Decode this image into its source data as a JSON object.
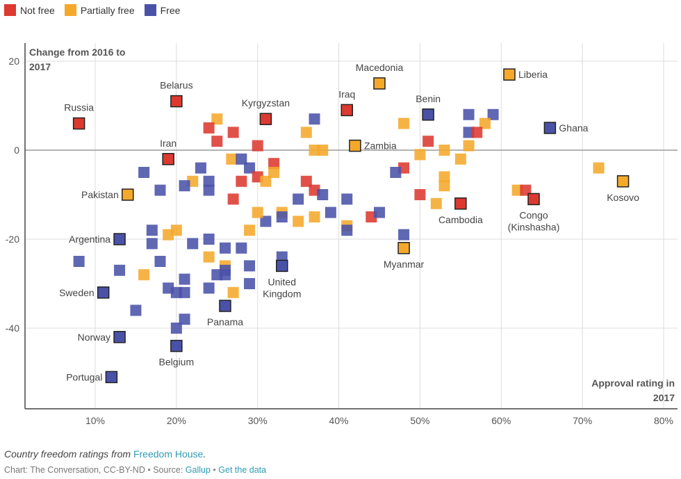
{
  "legend": [
    {
      "label": "Not free",
      "color": "#dc3a30"
    },
    {
      "label": "Partially free",
      "color": "#f5a92b"
    },
    {
      "label": "Free",
      "color": "#4a52a8"
    }
  ],
  "footer": {
    "note_prefix": "Country freedom ratings from",
    "note_link": "Freedom House",
    "note_suffix": ".",
    "credit": "Chart: The Conversation, CC-BY-ND",
    "separator": "•",
    "source_prefix": "Source:",
    "source_link": "Gallup",
    "data_link": "Get the data"
  },
  "chart_data": {
    "type": "scatter",
    "title": "",
    "ylabel": "Change from 2016 to 2017",
    "xlabel": "Approval rating in 2017",
    "xlim": [
      2,
      82
    ],
    "ylim": [
      -57.5,
      23
    ],
    "x_ticks": [
      10,
      20,
      30,
      40,
      50,
      60,
      70,
      80
    ],
    "x_tick_labels": [
      "10%",
      "20%",
      "30%",
      "40%",
      "50%",
      "60%",
      "70%",
      "80%"
    ],
    "y_ticks": [
      20,
      0,
      -20,
      -40
    ],
    "y_tick_labels": [
      "20",
      "0",
      "-20",
      "-40"
    ],
    "grid": true,
    "legend_position": "top-left",
    "categories": {
      "not_free": {
        "label": "Not free",
        "color": "#dc3a30"
      },
      "partially_free": {
        "label": "Partially free",
        "color": "#f5a92b"
      },
      "free": {
        "label": "Free",
        "color": "#4a52a8"
      }
    },
    "points": [
      {
        "x": 25,
        "y": 7,
        "cat": "partially_free"
      },
      {
        "x": 24,
        "y": 5,
        "cat": "not_free"
      },
      {
        "x": 27,
        "y": 4,
        "cat": "not_free"
      },
      {
        "x": 25,
        "y": 2,
        "cat": "not_free"
      },
      {
        "x": 30,
        "y": 1,
        "cat": "not_free"
      },
      {
        "x": 26.8,
        "y": -2,
        "cat": "partially_free"
      },
      {
        "x": 28,
        "y": -2,
        "cat": "free"
      },
      {
        "x": 29,
        "y": -4,
        "cat": "free"
      },
      {
        "x": 32,
        "y": -3,
        "cat": "not_free"
      },
      {
        "x": 32,
        "y": -5,
        "cat": "partially_free"
      },
      {
        "x": 30,
        "y": -6,
        "cat": "not_free"
      },
      {
        "x": 31,
        "y": -7,
        "cat": "partially_free"
      },
      {
        "x": 28,
        "y": -7,
        "cat": "not_free"
      },
      {
        "x": 27,
        "y": -11,
        "cat": "not_free"
      },
      {
        "x": 16,
        "y": -5,
        "cat": "free"
      },
      {
        "x": 23,
        "y": -4,
        "cat": "free"
      },
      {
        "x": 22,
        "y": -7,
        "cat": "partially_free"
      },
      {
        "x": 24,
        "y": -7,
        "cat": "free"
      },
      {
        "x": 21,
        "y": -8,
        "cat": "free"
      },
      {
        "x": 24,
        "y": -9,
        "cat": "free"
      },
      {
        "x": 18,
        "y": -9,
        "cat": "free"
      },
      {
        "x": 37,
        "y": 7,
        "cat": "free"
      },
      {
        "x": 36,
        "y": 4,
        "cat": "partially_free"
      },
      {
        "x": 48,
        "y": 6,
        "cat": "partially_free"
      },
      {
        "x": 37,
        "y": 0,
        "cat": "partially_free"
      },
      {
        "x": 38,
        "y": 0,
        "cat": "partially_free"
      },
      {
        "x": 51,
        "y": 2,
        "cat": "not_free"
      },
      {
        "x": 50,
        "y": -1,
        "cat": "partially_free"
      },
      {
        "x": 48,
        "y": -4,
        "cat": "not_free"
      },
      {
        "x": 47,
        "y": -5,
        "cat": "free"
      },
      {
        "x": 53,
        "y": 0,
        "cat": "partially_free"
      },
      {
        "x": 56,
        "y": 8,
        "cat": "free"
      },
      {
        "x": 59,
        "y": 8,
        "cat": "free"
      },
      {
        "x": 58,
        "y": 6,
        "cat": "partially_free"
      },
      {
        "x": 56,
        "y": 4,
        "cat": "free"
      },
      {
        "x": 57,
        "y": 4,
        "cat": "not_free"
      },
      {
        "x": 56,
        "y": 1,
        "cat": "partially_free"
      },
      {
        "x": 55,
        "y": -2,
        "cat": "partially_free"
      },
      {
        "x": 53,
        "y": -6,
        "cat": "partially_free"
      },
      {
        "x": 53,
        "y": -8,
        "cat": "partially_free"
      },
      {
        "x": 72,
        "y": -4,
        "cat": "partially_free"
      },
      {
        "x": 62,
        "y": -9,
        "cat": "partially_free"
      },
      {
        "x": 63,
        "y": -9,
        "cat": "not_free"
      },
      {
        "x": 50,
        "y": -10,
        "cat": "not_free"
      },
      {
        "x": 52,
        "y": -12,
        "cat": "partially_free"
      },
      {
        "x": 36,
        "y": -7,
        "cat": "not_free"
      },
      {
        "x": 37,
        "y": -9,
        "cat": "not_free"
      },
      {
        "x": 38,
        "y": -10,
        "cat": "free"
      },
      {
        "x": 35,
        "y": -11,
        "cat": "free"
      },
      {
        "x": 41,
        "y": -11,
        "cat": "free"
      },
      {
        "x": 33,
        "y": -14,
        "cat": "partially_free"
      },
      {
        "x": 33,
        "y": -15,
        "cat": "free"
      },
      {
        "x": 31,
        "y": -16,
        "cat": "free"
      },
      {
        "x": 35,
        "y": -16,
        "cat": "partially_free"
      },
      {
        "x": 37,
        "y": -15,
        "cat": "partially_free"
      },
      {
        "x": 39,
        "y": -14,
        "cat": "free"
      },
      {
        "x": 44,
        "y": -15,
        "cat": "not_free"
      },
      {
        "x": 45,
        "y": -14,
        "cat": "free"
      },
      {
        "x": 41,
        "y": -17,
        "cat": "partially_free"
      },
      {
        "x": 41,
        "y": -18,
        "cat": "free"
      },
      {
        "x": 48,
        "y": -19,
        "cat": "free"
      },
      {
        "x": 33,
        "y": -24,
        "cat": "free"
      },
      {
        "x": 30,
        "y": -14,
        "cat": "partially_free"
      },
      {
        "x": 29,
        "y": -18,
        "cat": "partially_free"
      },
      {
        "x": 17,
        "y": -18,
        "cat": "free"
      },
      {
        "x": 17,
        "y": -21,
        "cat": "free"
      },
      {
        "x": 19,
        "y": -19,
        "cat": "partially_free"
      },
      {
        "x": 20,
        "y": -18,
        "cat": "partially_free"
      },
      {
        "x": 22,
        "y": -21,
        "cat": "free"
      },
      {
        "x": 24,
        "y": -20,
        "cat": "free"
      },
      {
        "x": 26,
        "y": -22,
        "cat": "free"
      },
      {
        "x": 28,
        "y": -22,
        "cat": "free"
      },
      {
        "x": 24,
        "y": -24,
        "cat": "partially_free"
      },
      {
        "x": 26,
        "y": -26,
        "cat": "partially_free"
      },
      {
        "x": 26,
        "y": -27,
        "cat": "free"
      },
      {
        "x": 25,
        "y": -28,
        "cat": "free"
      },
      {
        "x": 26,
        "y": -28,
        "cat": "free"
      },
      {
        "x": 29,
        "y": -26,
        "cat": "free"
      },
      {
        "x": 29,
        "y": -30,
        "cat": "free"
      },
      {
        "x": 18,
        "y": -25,
        "cat": "free"
      },
      {
        "x": 16,
        "y": -28,
        "cat": "partially_free"
      },
      {
        "x": 21,
        "y": -29,
        "cat": "free"
      },
      {
        "x": 19,
        "y": -31,
        "cat": "free"
      },
      {
        "x": 20,
        "y": -32,
        "cat": "free"
      },
      {
        "x": 21,
        "y": -32,
        "cat": "free"
      },
      {
        "x": 24,
        "y": -31,
        "cat": "free"
      },
      {
        "x": 27,
        "y": -32,
        "cat": "partially_free"
      },
      {
        "x": 8,
        "y": -25,
        "cat": "free"
      },
      {
        "x": 13,
        "y": -27,
        "cat": "free"
      },
      {
        "x": 15,
        "y": -36,
        "cat": "free"
      },
      {
        "x": 21,
        "y": -38,
        "cat": "free"
      },
      {
        "x": 20,
        "y": -40,
        "cat": "free"
      }
    ],
    "labeled_points": [
      {
        "name": "Russia",
        "x": 8,
        "y": 6,
        "cat": "not_free",
        "label_pos": "top"
      },
      {
        "name": "Belarus",
        "x": 20,
        "y": 11,
        "cat": "not_free",
        "label_pos": "top"
      },
      {
        "name": "Iran",
        "x": 19,
        "y": -2,
        "cat": "not_free",
        "label_pos": "top"
      },
      {
        "name": "Kyrgyzstan",
        "x": 31,
        "y": 7,
        "cat": "not_free",
        "label_pos": "top"
      },
      {
        "name": "Iraq",
        "x": 41,
        "y": 9,
        "cat": "not_free",
        "label_pos": "top"
      },
      {
        "name": "Macedonia",
        "x": 45,
        "y": 15,
        "cat": "partially_free",
        "label_pos": "top"
      },
      {
        "name": "Benin",
        "x": 51,
        "y": 8,
        "cat": "free",
        "label_pos": "top"
      },
      {
        "name": "Liberia",
        "x": 61,
        "y": 17,
        "cat": "partially_free",
        "label_pos": "right"
      },
      {
        "name": "Ghana",
        "x": 66,
        "y": 5,
        "cat": "free",
        "label_pos": "right"
      },
      {
        "name": "Zambia",
        "x": 42,
        "y": 1,
        "cat": "partially_free",
        "label_pos": "right"
      },
      {
        "name": "Pakistan",
        "x": 14,
        "y": -10,
        "cat": "partially_free",
        "label_pos": "left"
      },
      {
        "name": "Cambodia",
        "x": 55,
        "y": -12,
        "cat": "not_free",
        "label_pos": "bottom"
      },
      {
        "name": "Congo\n(Kinshasha)",
        "x": 64,
        "y": -11,
        "cat": "not_free",
        "label_pos": "bottom"
      },
      {
        "name": "Kosovo",
        "x": 75,
        "y": -7,
        "cat": "partially_free",
        "label_pos": "bottom"
      },
      {
        "name": "Argentina",
        "x": 13,
        "y": -20,
        "cat": "free",
        "label_pos": "left"
      },
      {
        "name": "Myanmar",
        "x": 48,
        "y": -22,
        "cat": "partially_free",
        "label_pos": "bottom"
      },
      {
        "name": "United\nKingdom",
        "x": 33,
        "y": -26,
        "cat": "free",
        "label_pos": "bottom"
      },
      {
        "name": "Sweden",
        "x": 11,
        "y": -32,
        "cat": "free",
        "label_pos": "left"
      },
      {
        "name": "Panama",
        "x": 26,
        "y": -35,
        "cat": "free",
        "label_pos": "bottom"
      },
      {
        "name": "Norway",
        "x": 13,
        "y": -42,
        "cat": "free",
        "label_pos": "left"
      },
      {
        "name": "Belgium",
        "x": 20,
        "y": -44,
        "cat": "free",
        "label_pos": "bottom"
      },
      {
        "name": "Portugal",
        "x": 12,
        "y": -51,
        "cat": "free",
        "label_pos": "left"
      }
    ]
  }
}
